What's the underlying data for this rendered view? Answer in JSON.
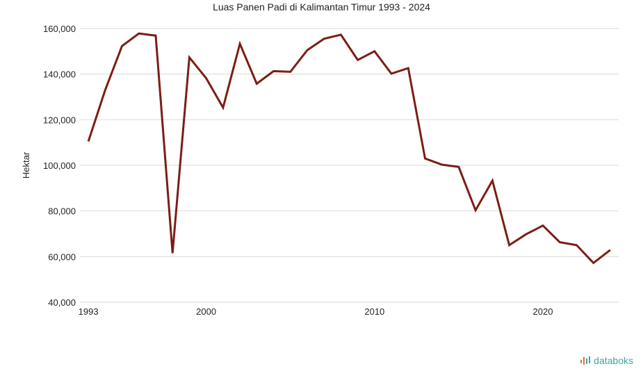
{
  "chart_data": {
    "type": "line",
    "title": "Luas Panen Padi di Kalimantan Timur 1993 - 2024",
    "xlabel": "",
    "ylabel": "Hektar",
    "ylim": [
      40000,
      160000
    ],
    "y_ticks": [
      40000,
      60000,
      80000,
      100000,
      120000,
      140000,
      160000
    ],
    "y_tick_labels": [
      "40,000",
      "60,000",
      "80,000",
      "100,000",
      "120,000",
      "140,000",
      "160,000"
    ],
    "x_ticks": [
      1993,
      2000,
      2010,
      2020
    ],
    "x_tick_labels": [
      "1993",
      "2000",
      "2010",
      "2020"
    ],
    "grid": true,
    "series": [
      {
        "color": "#7a1e14",
        "points": [
          {
            "x": 1993,
            "y": 110500
          },
          {
            "x": 1994,
            "y": 133000
          },
          {
            "x": 1995,
            "y": 152300
          },
          {
            "x": 1996,
            "y": 157800
          },
          {
            "x": 1997,
            "y": 156900
          },
          {
            "x": 1998,
            "y": 61500
          },
          {
            "x": 1999,
            "y": 147300
          },
          {
            "x": 2000,
            "y": 138200
          },
          {
            "x": 2001,
            "y": 125300
          },
          {
            "x": 2002,
            "y": 153300
          },
          {
            "x": 2003,
            "y": 135800
          },
          {
            "x": 2004,
            "y": 141300
          },
          {
            "x": 2005,
            "y": 141000
          },
          {
            "x": 2006,
            "y": 150500
          },
          {
            "x": 2007,
            "y": 155500
          },
          {
            "x": 2008,
            "y": 157300
          },
          {
            "x": 2009,
            "y": 146200
          },
          {
            "x": 2010,
            "y": 150000
          },
          {
            "x": 2011,
            "y": 140200
          },
          {
            "x": 2012,
            "y": 142600
          },
          {
            "x": 2013,
            "y": 103000
          },
          {
            "x": 2014,
            "y": 100300
          },
          {
            "x": 2015,
            "y": 99300
          },
          {
            "x": 2016,
            "y": 80300
          },
          {
            "x": 2017,
            "y": 93300
          },
          {
            "x": 2018,
            "y": 65000
          },
          {
            "x": 2019,
            "y": 69800
          },
          {
            "x": 2020,
            "y": 73600
          },
          {
            "x": 2021,
            "y": 66300
          },
          {
            "x": 2022,
            "y": 65000
          },
          {
            "x": 2023,
            "y": 57200
          },
          {
            "x": 2024,
            "y": 62900
          }
        ]
      }
    ]
  },
  "brand": {
    "name": "databoks",
    "color": "#3aa6a0",
    "accent": "#e86a3a"
  }
}
